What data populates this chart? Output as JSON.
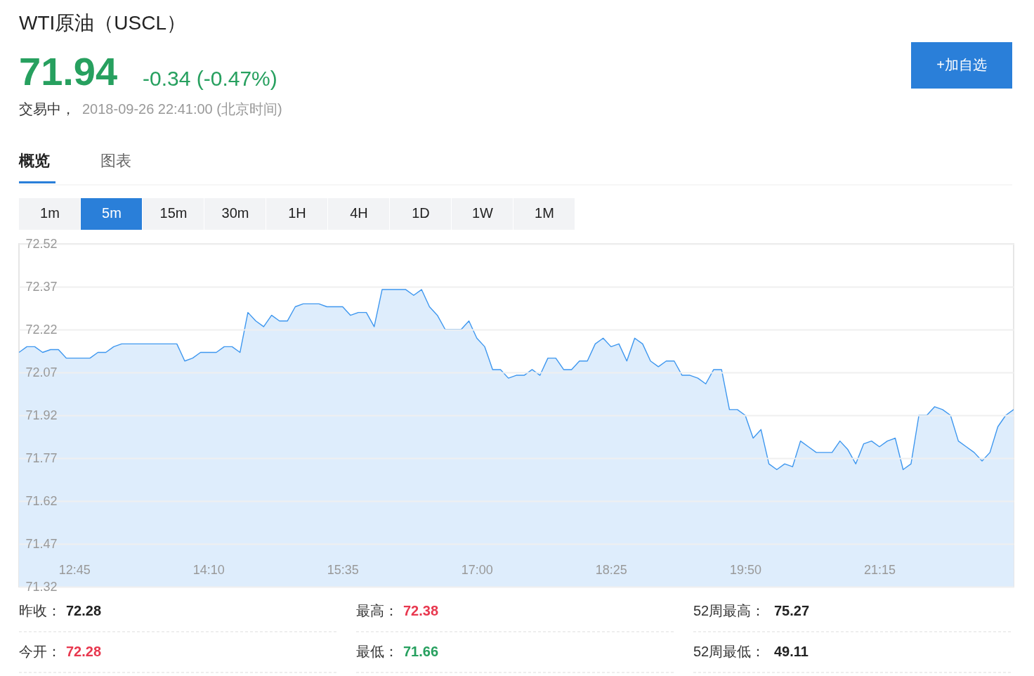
{
  "chart_data": {
    "type": "area",
    "title": "WTI原油（USCL）",
    "annotations": [
      "71.94",
      "-0.34 (-0.47%)",
      "交易中，",
      "2018-09-26 22:41:00 (北京时间)",
      "+加自选",
      "概览",
      "图表",
      "1m",
      "5m",
      "15m",
      "30m",
      "1H",
      "4H",
      "1D",
      "1W",
      "1M",
      "昨收：",
      "72.28",
      "最高：",
      "72.38",
      "52周最高：",
      "75.27",
      "今开：",
      "72.28",
      "最低：",
      "71.66",
      "52周最低：",
      "49.11"
    ],
    "x": [
      "2018-09-26T12:10",
      "2018-09-26T12:15",
      "2018-09-26T12:20",
      "2018-09-26T12:25",
      "2018-09-26T12:30",
      "2018-09-26T12:35",
      "2018-09-26T12:40",
      "2018-09-26T12:45",
      "2018-09-26T12:50",
      "2018-09-26T12:55",
      "2018-09-26T13:00",
      "2018-09-26T13:05",
      "2018-09-26T13:10",
      "2018-09-26T13:15",
      "2018-09-26T13:20",
      "2018-09-26T13:25",
      "2018-09-26T13:30",
      "2018-09-26T13:35",
      "2018-09-26T13:40",
      "2018-09-26T13:45",
      "2018-09-26T13:50",
      "2018-09-26T13:55",
      "2018-09-26T14:00",
      "2018-09-26T14:05",
      "2018-09-26T14:10",
      "2018-09-26T14:15",
      "2018-09-26T14:20",
      "2018-09-26T14:25",
      "2018-09-26T14:30",
      "2018-09-26T14:35",
      "2018-09-26T14:40",
      "2018-09-26T14:45",
      "2018-09-26T14:50",
      "2018-09-26T14:55",
      "2018-09-26T15:00",
      "2018-09-26T15:05",
      "2018-09-26T15:10",
      "2018-09-26T15:15",
      "2018-09-26T15:20",
      "2018-09-26T15:25",
      "2018-09-26T15:30",
      "2018-09-26T15:35",
      "2018-09-26T15:40",
      "2018-09-26T15:45",
      "2018-09-26T15:50",
      "2018-09-26T15:55",
      "2018-09-26T16:00",
      "2018-09-26T16:05",
      "2018-09-26T16:10",
      "2018-09-26T16:15",
      "2018-09-26T16:20",
      "2018-09-26T16:25",
      "2018-09-26T16:30",
      "2018-09-26T16:35",
      "2018-09-26T16:40",
      "2018-09-26T16:45",
      "2018-09-26T16:50",
      "2018-09-26T16:55",
      "2018-09-26T17:00",
      "2018-09-26T17:05",
      "2018-09-26T17:10",
      "2018-09-26T17:15",
      "2018-09-26T17:20",
      "2018-09-26T17:25",
      "2018-09-26T17:30",
      "2018-09-26T17:35",
      "2018-09-26T17:40",
      "2018-09-26T17:45",
      "2018-09-26T17:50",
      "2018-09-26T17:55",
      "2018-09-26T18:00",
      "2018-09-26T18:05",
      "2018-09-26T18:10",
      "2018-09-26T18:15",
      "2018-09-26T18:20",
      "2018-09-26T18:25",
      "2018-09-26T18:30",
      "2018-09-26T18:35",
      "2018-09-26T18:40",
      "2018-09-26T18:45",
      "2018-09-26T18:50",
      "2018-09-26T18:55",
      "2018-09-26T19:00",
      "2018-09-26T19:05",
      "2018-09-26T19:10",
      "2018-09-26T19:15",
      "2018-09-26T19:20",
      "2018-09-26T19:25",
      "2018-09-26T19:30",
      "2018-09-26T19:35",
      "2018-09-26T19:40",
      "2018-09-26T19:45",
      "2018-09-26T19:50",
      "2018-09-26T19:55",
      "2018-09-26T20:00",
      "2018-09-26T20:05",
      "2018-09-26T20:10",
      "2018-09-26T20:15",
      "2018-09-26T20:20",
      "2018-09-26T20:25",
      "2018-09-26T20:30",
      "2018-09-26T20:35",
      "2018-09-26T20:40",
      "2018-09-26T20:45",
      "2018-09-26T20:50",
      "2018-09-26T20:55",
      "2018-09-26T21:00",
      "2018-09-26T21:05",
      "2018-09-26T21:10",
      "2018-09-26T21:15",
      "2018-09-26T21:20",
      "2018-09-26T21:25",
      "2018-09-26T21:30",
      "2018-09-26T21:35",
      "2018-09-26T21:40",
      "2018-09-26T21:45",
      "2018-09-26T21:50",
      "2018-09-26T21:55",
      "2018-09-26T22:00",
      "2018-09-26T22:05",
      "2018-09-26T22:10",
      "2018-09-26T22:15",
      "2018-09-26T22:20",
      "2018-09-26T22:25",
      "2018-09-26T22:30",
      "2018-09-26T22:35",
      "2018-09-26T22:40"
    ],
    "series": [
      {
        "color": "#3e97ef",
        "values": [
          72.14,
          72.16,
          72.16,
          72.14,
          72.15,
          72.15,
          72.12,
          72.12,
          72.12,
          72.12,
          72.14,
          72.14,
          72.16,
          72.17,
          72.17,
          72.17,
          72.17,
          72.17,
          72.17,
          72.17,
          72.17,
          72.11,
          72.12,
          72.14,
          72.14,
          72.14,
          72.16,
          72.16,
          72.14,
          72.28,
          72.25,
          72.23,
          72.27,
          72.25,
          72.25,
          72.3,
          72.31,
          72.31,
          72.31,
          72.3,
          72.3,
          72.3,
          72.27,
          72.28,
          72.28,
          72.23,
          72.36,
          72.36,
          72.36,
          72.36,
          72.34,
          72.36,
          72.3,
          72.27,
          72.22,
          72.22,
          72.22,
          72.25,
          72.19,
          72.16,
          72.08,
          72.08,
          72.05,
          72.06,
          72.06,
          72.08,
          72.06,
          72.12,
          72.12,
          72.08,
          72.08,
          72.11,
          72.11,
          72.17,
          72.19,
          72.16,
          72.17,
          72.11,
          72.19,
          72.17,
          72.11,
          72.09,
          72.11,
          72.11,
          72.06,
          72.06,
          72.05,
          72.03,
          72.08,
          72.08,
          71.94,
          71.94,
          71.92,
          71.84,
          71.87,
          71.75,
          71.73,
          71.75,
          71.74,
          71.83,
          71.81,
          71.79,
          71.79,
          71.79,
          71.83,
          71.8,
          71.75,
          71.82,
          71.83,
          71.81,
          71.83,
          71.84,
          71.73,
          71.75,
          71.92,
          71.92,
          71.95,
          71.94,
          71.92,
          71.83,
          71.81,
          71.79,
          71.76,
          71.79,
          71.88,
          71.92,
          71.94
        ]
      }
    ],
    "xlim": [
      "2018-09-26T12:10",
      "2018-09-26T22:40"
    ],
    "xticks": [
      {
        "value": "2018-09-26T12:45",
        "label": "12:45"
      },
      {
        "value": "2018-09-26T14:10",
        "label": "14:10"
      },
      {
        "value": "2018-09-26T15:35",
        "label": "15:35"
      },
      {
        "value": "2018-09-26T17:00",
        "label": "17:00"
      },
      {
        "value": "2018-09-26T18:25",
        "label": "18:25"
      },
      {
        "value": "2018-09-26T19:50",
        "label": "19:50"
      },
      {
        "value": "2018-09-26T21:15",
        "label": "21:15"
      }
    ],
    "ylim": [
      71.32,
      72.52
    ],
    "yticks": [
      71.32,
      71.47,
      71.62,
      71.77,
      71.92,
      72.07,
      72.22,
      72.37,
      72.52
    ],
    "grid": "y"
  }
}
